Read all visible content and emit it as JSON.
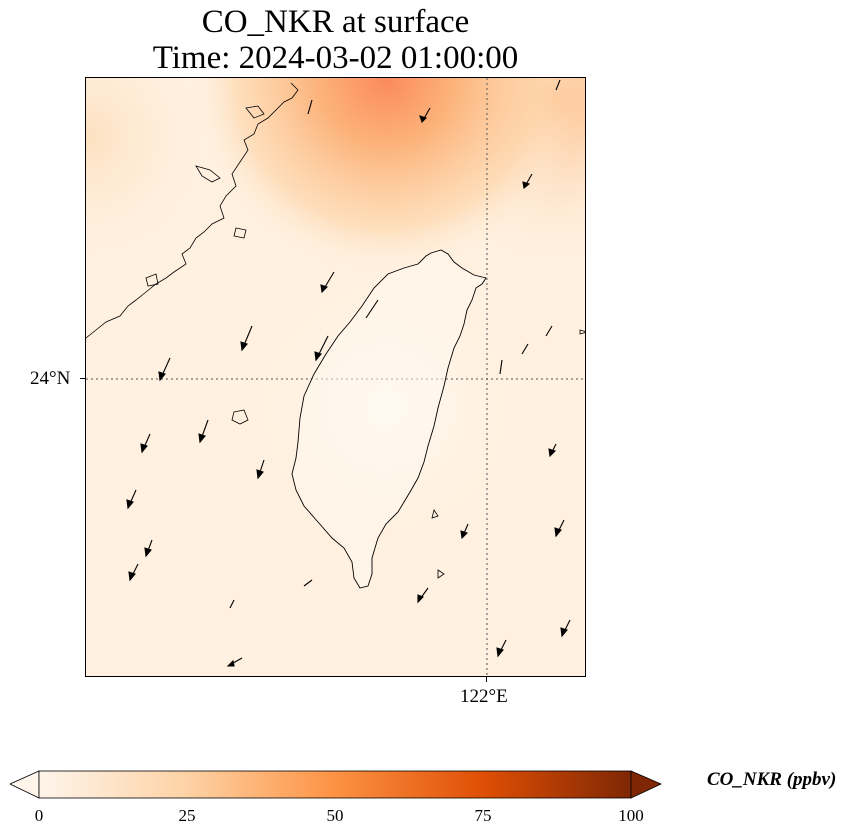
{
  "title": {
    "line1": "CO_NKR at surface",
    "line2": "Time: 2024-03-02 01:00:00"
  },
  "axes": {
    "lat_label": "24°N",
    "lon_label": "122°E"
  },
  "colorbar": {
    "label": "CO_NKR (ppbv)",
    "ticks": [
      "0",
      "25",
      "50",
      "75",
      "100"
    ],
    "colors": [
      "#fff5eb",
      "#fdd2a5",
      "#fd9243",
      "#df4f05",
      "#7f2704"
    ],
    "extend": "both"
  },
  "colormap": "Oranges",
  "features": [
    "coastline",
    "wind-vectors",
    "gridlines"
  ]
}
